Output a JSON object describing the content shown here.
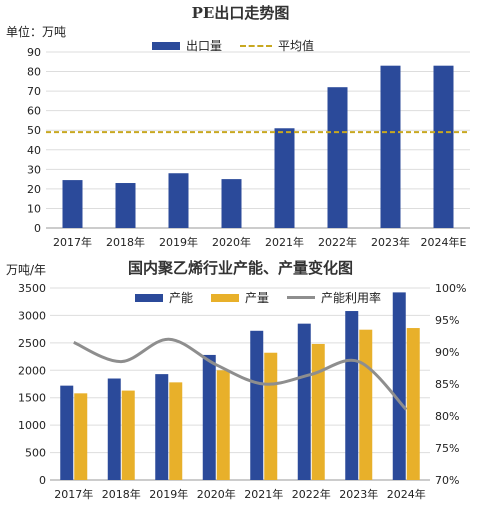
{
  "chart_data": [
    {
      "type": "bar",
      "title": "PE出口走势图",
      "unit_label": "单位：万吨",
      "categories": [
        "2017年",
        "2018年",
        "2019年",
        "2020年",
        "2021年",
        "2022年",
        "2023年",
        "2024年E"
      ],
      "series": [
        {
          "name": "出口量",
          "values": [
            24.5,
            23,
            28,
            25,
            51,
            72,
            83,
            83
          ],
          "color": "#2b4a9a"
        }
      ],
      "reference_line": {
        "name": "平均值",
        "value": 49,
        "color": "#c8a820",
        "style": "dashed"
      },
      "ylim": [
        0,
        90
      ],
      "yticks": [
        "0",
        "10",
        "20",
        "30",
        "40",
        "50",
        "60",
        "70",
        "80",
        "90"
      ],
      "grid": true,
      "legend": "top"
    },
    {
      "type": "bar",
      "title": "国内聚乙烯行业产能、产量变化图",
      "unit_label": "万吨/年",
      "categories": [
        "2017年",
        "2018年",
        "2019年",
        "2020年",
        "2021年",
        "2022年",
        "2023年",
        "2024年"
      ],
      "series": [
        {
          "name": "产能",
          "values": [
            1720,
            1850,
            1930,
            2280,
            2720,
            2850,
            3080,
            3420
          ],
          "color": "#2b4a9a"
        },
        {
          "name": "产量",
          "values": [
            1580,
            1630,
            1780,
            2000,
            2320,
            2480,
            2740,
            2770
          ],
          "color": "#e8b02a"
        }
      ],
      "line_series": {
        "name": "产能利用率",
        "values": [
          91.5,
          88.5,
          92,
          88,
          85,
          86.5,
          88.5,
          81
        ],
        "color": "#8e8e8e",
        "axis": "right"
      },
      "ylim": [
        0,
        3500
      ],
      "yticks": [
        "0",
        "500",
        "1000",
        "1500",
        "2000",
        "2500",
        "3000",
        "3500"
      ],
      "y2lim": [
        70,
        100
      ],
      "y2ticks": [
        "70%",
        "75%",
        "80%",
        "85%",
        "90%",
        "95%",
        "100%"
      ],
      "grid": true,
      "legend": "top"
    }
  ]
}
